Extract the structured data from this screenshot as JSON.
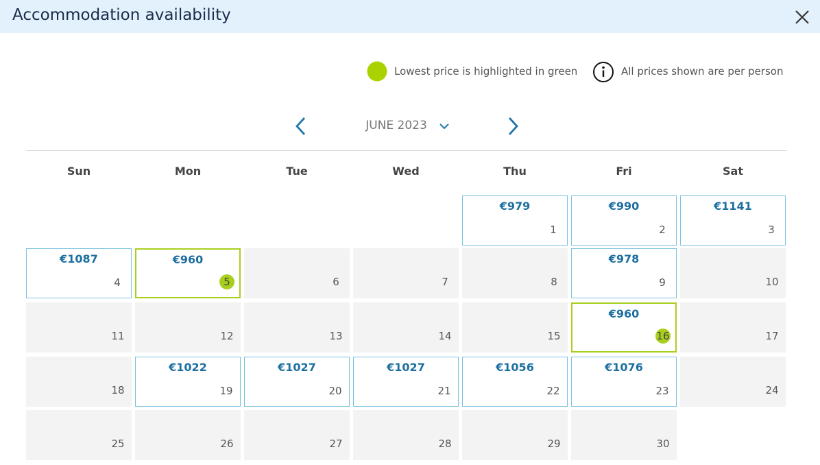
{
  "header": {
    "title": "Accommodation availability"
  },
  "legend": {
    "lowest": "Lowest price is highlighted in green",
    "per_person": "All prices shown are per person"
  },
  "navigation": {
    "month": "JUNE 2023"
  },
  "calendar": {
    "weekdays": [
      "Sun",
      "Mon",
      "Tue",
      "Wed",
      "Thu",
      "Fri",
      "Sat"
    ],
    "weeks": [
      [
        null,
        null,
        null,
        null,
        {
          "day": 1,
          "price": "€979"
        },
        {
          "day": 2,
          "price": "€990"
        },
        {
          "day": 3,
          "price": "€1141"
        }
      ],
      [
        {
          "day": 4,
          "price": "€1087"
        },
        {
          "day": 5,
          "price": "€960",
          "lowest": true
        },
        {
          "day": 6
        },
        {
          "day": 7
        },
        {
          "day": 8
        },
        {
          "day": 9,
          "price": "€978"
        },
        {
          "day": 10
        }
      ],
      [
        {
          "day": 11
        },
        {
          "day": 12
        },
        {
          "day": 13
        },
        {
          "day": 14
        },
        {
          "day": 15
        },
        {
          "day": 16,
          "price": "€960",
          "lowest": true
        },
        {
          "day": 17
        }
      ],
      [
        {
          "day": 18
        },
        {
          "day": 19,
          "price": "€1022"
        },
        {
          "day": 20,
          "price": "€1027"
        },
        {
          "day": 21,
          "price": "€1027"
        },
        {
          "day": 22,
          "price": "€1056"
        },
        {
          "day": 23,
          "price": "€1076"
        },
        {
          "day": 24
        }
      ],
      [
        {
          "day": 25
        },
        {
          "day": 26
        },
        {
          "day": 27
        },
        {
          "day": 28
        },
        {
          "day": 29
        },
        {
          "day": 30
        },
        null
      ]
    ]
  }
}
